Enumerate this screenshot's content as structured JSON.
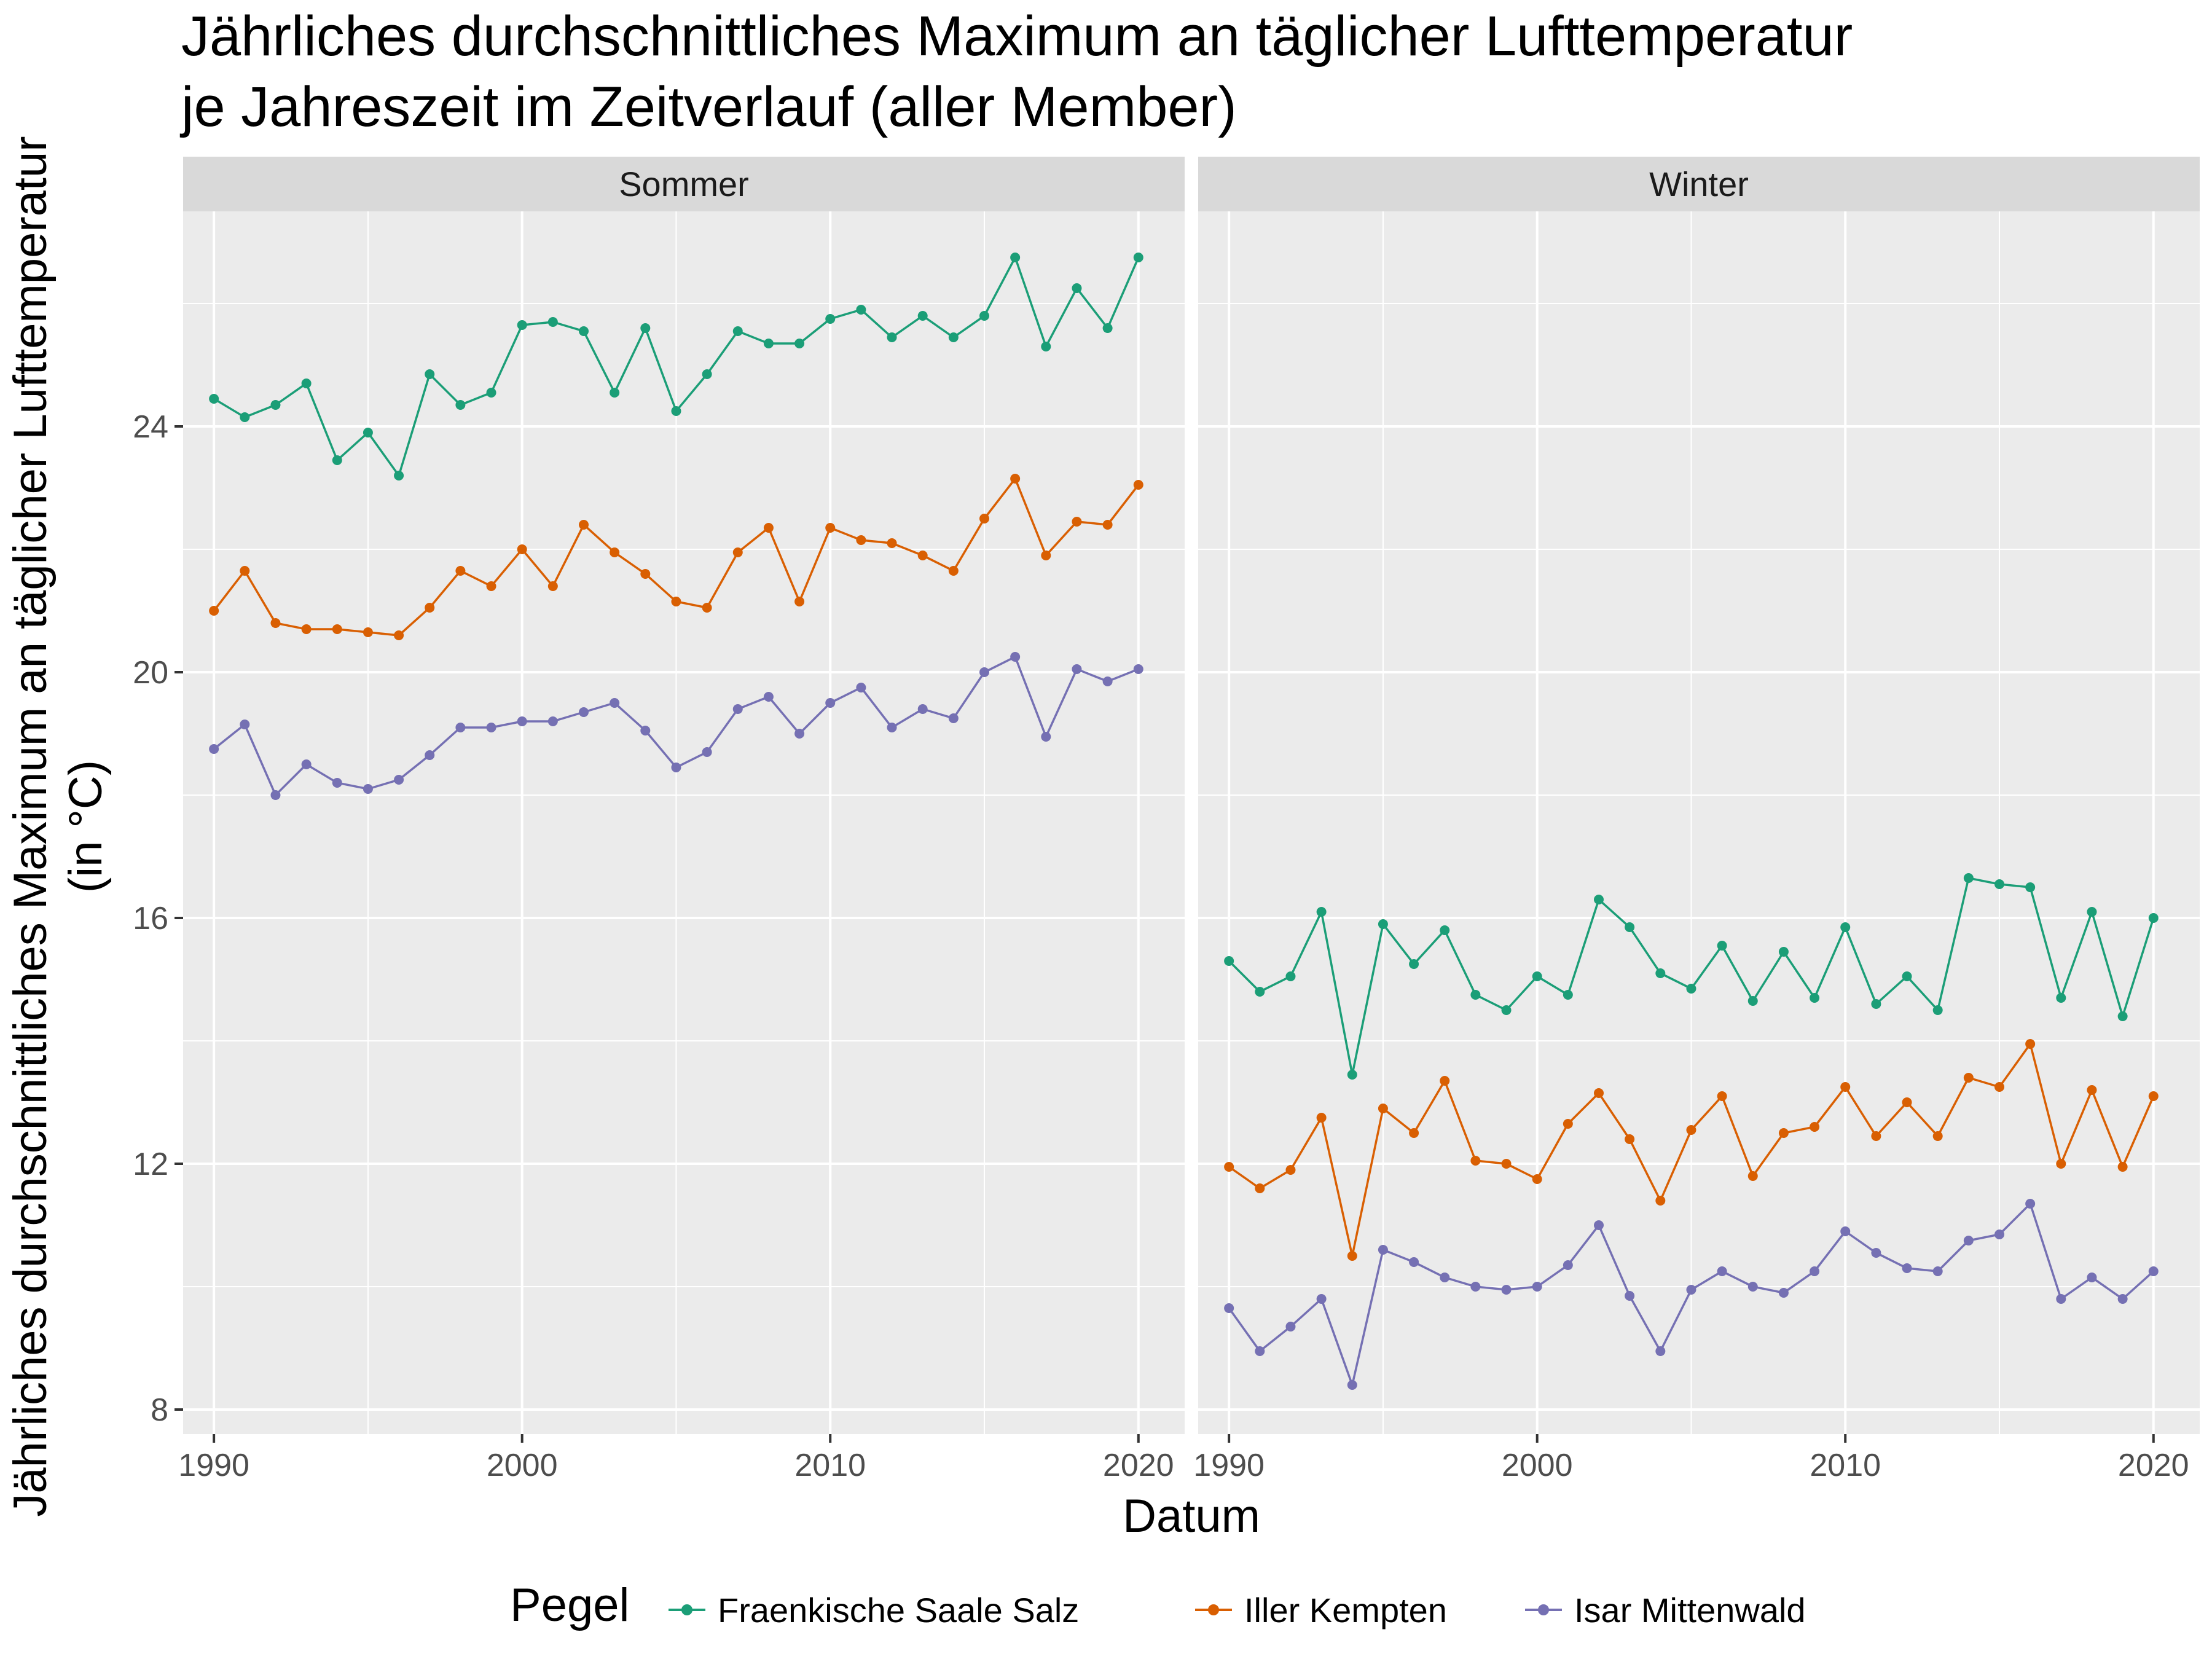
{
  "chart_data": {
    "type": "line",
    "title": "Jährliches durchschnittliches Maximum an täglicher Lufttemperatur",
    "subtitle": "je Jahreszeit im Zeitverlauf (aller Member)",
    "xlabel": "Datum",
    "ylabel": "Jährliches durchschnittliches Maximum an täglicher Lufttemperatur",
    "ylabel_unit": "(in °C)",
    "xlim": [
      1989,
      2021.5
    ],
    "ylim": [
      7.6,
      27.5
    ],
    "x_ticks": [
      1990,
      2000,
      2010,
      2020
    ],
    "y_ticks": [
      8,
      12,
      16,
      20,
      24
    ],
    "grid": true,
    "legend": {
      "title": "Pegel",
      "position": "bottom"
    },
    "colors": {
      "Fraenkische Saale Salz": "#1b9e77",
      "Iller Kempten": "#d95f02",
      "Isar Mittenwald": "#7570b3"
    },
    "x": [
      1990,
      1991,
      1992,
      1993,
      1994,
      1995,
      1996,
      1997,
      1998,
      1999,
      2000,
      2001,
      2002,
      2003,
      2004,
      2005,
      2006,
      2007,
      2008,
      2009,
      2010,
      2011,
      2012,
      2013,
      2014,
      2015,
      2016,
      2017,
      2018,
      2019,
      2020
    ],
    "panels": [
      {
        "name": "Sommer",
        "series": [
          {
            "name": "Fraenkische Saale Salz",
            "values": [
              24.45,
              24.15,
              24.35,
              24.7,
              23.45,
              23.9,
              23.2,
              24.85,
              24.35,
              24.55,
              25.65,
              25.7,
              25.55,
              24.55,
              25.6,
              24.25,
              24.85,
              25.55,
              25.35,
              25.35,
              25.75,
              25.9,
              25.45,
              25.8,
              25.45,
              25.8,
              26.75,
              25.3,
              26.25,
              25.6,
              26.75
            ]
          },
          {
            "name": "Iller Kempten",
            "values": [
              21.0,
              21.65,
              20.8,
              20.7,
              20.7,
              20.65,
              20.6,
              21.05,
              21.65,
              21.4,
              22.0,
              21.4,
              22.4,
              21.95,
              21.6,
              21.15,
              21.05,
              21.95,
              22.35,
              21.15,
              22.35,
              22.15,
              22.1,
              21.9,
              21.65,
              22.5,
              23.15,
              21.9,
              22.45,
              22.4,
              23.05
            ]
          },
          {
            "name": "Isar Mittenwald",
            "values": [
              18.75,
              19.15,
              18.0,
              18.5,
              18.2,
              18.1,
              18.25,
              18.65,
              19.1,
              19.1,
              19.2,
              19.2,
              19.35,
              19.5,
              19.05,
              18.45,
              18.7,
              19.4,
              19.6,
              19.0,
              19.5,
              19.75,
              19.1,
              19.4,
              19.25,
              20.0,
              20.25,
              18.95,
              20.05,
              19.85,
              20.05
            ]
          }
        ]
      },
      {
        "name": "Winter",
        "series": [
          {
            "name": "Fraenkische Saale Salz",
            "values": [
              15.3,
              14.8,
              15.05,
              16.1,
              13.45,
              15.9,
              15.25,
              15.8,
              14.75,
              14.5,
              15.05,
              14.75,
              16.3,
              15.85,
              15.1,
              14.85,
              15.55,
              14.65,
              15.45,
              14.7,
              15.85,
              14.6,
              15.05,
              14.5,
              16.65,
              16.55,
              16.5,
              14.7,
              16.1,
              14.4,
              16.0
            ]
          },
          {
            "name": "Iller Kempten",
            "values": [
              11.95,
              11.6,
              11.9,
              12.75,
              10.5,
              12.9,
              12.5,
              13.35,
              12.05,
              12.0,
              11.75,
              12.65,
              13.15,
              12.4,
              11.4,
              12.55,
              13.1,
              11.8,
              12.5,
              12.6,
              13.25,
              12.45,
              13.0,
              12.45,
              13.4,
              13.25,
              13.95,
              12.0,
              13.2,
              11.95,
              13.1
            ]
          },
          {
            "name": "Isar Mittenwald",
            "values": [
              9.65,
              8.95,
              9.35,
              9.8,
              8.4,
              10.6,
              10.4,
              10.15,
              10.0,
              9.95,
              10.0,
              10.35,
              11.0,
              9.85,
              8.95,
              9.95,
              10.25,
              10.0,
              9.9,
              10.25,
              10.9,
              10.55,
              10.3,
              10.25,
              10.75,
              10.85,
              11.35,
              9.8,
              10.15,
              9.8,
              10.25
            ]
          }
        ]
      }
    ]
  }
}
